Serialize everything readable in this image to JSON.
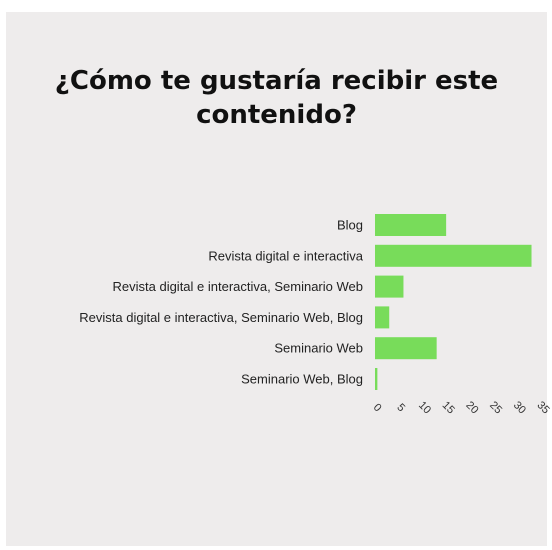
{
  "chart_data": {
    "type": "bar",
    "orientation": "horizontal",
    "title": "¿Cómo te gustaría recibir este contenido?",
    "categories": [
      "Blog",
      "Revista digital e interactiva",
      "Revista digital e interactiva, Seminario Web",
      "Revista digital e interactiva, Seminario Web, Blog",
      "Seminario Web",
      "Seminario Web, Blog"
    ],
    "values": [
      15,
      33,
      6,
      3,
      13,
      0.5
    ],
    "xticks": [
      "0",
      "5",
      "10",
      "15",
      "20",
      "25",
      "30",
      "35"
    ],
    "xlim": [
      0,
      35
    ],
    "bar_color": "#78dc5a",
    "background": "#eeecec",
    "grid": false,
    "legend": "none"
  }
}
